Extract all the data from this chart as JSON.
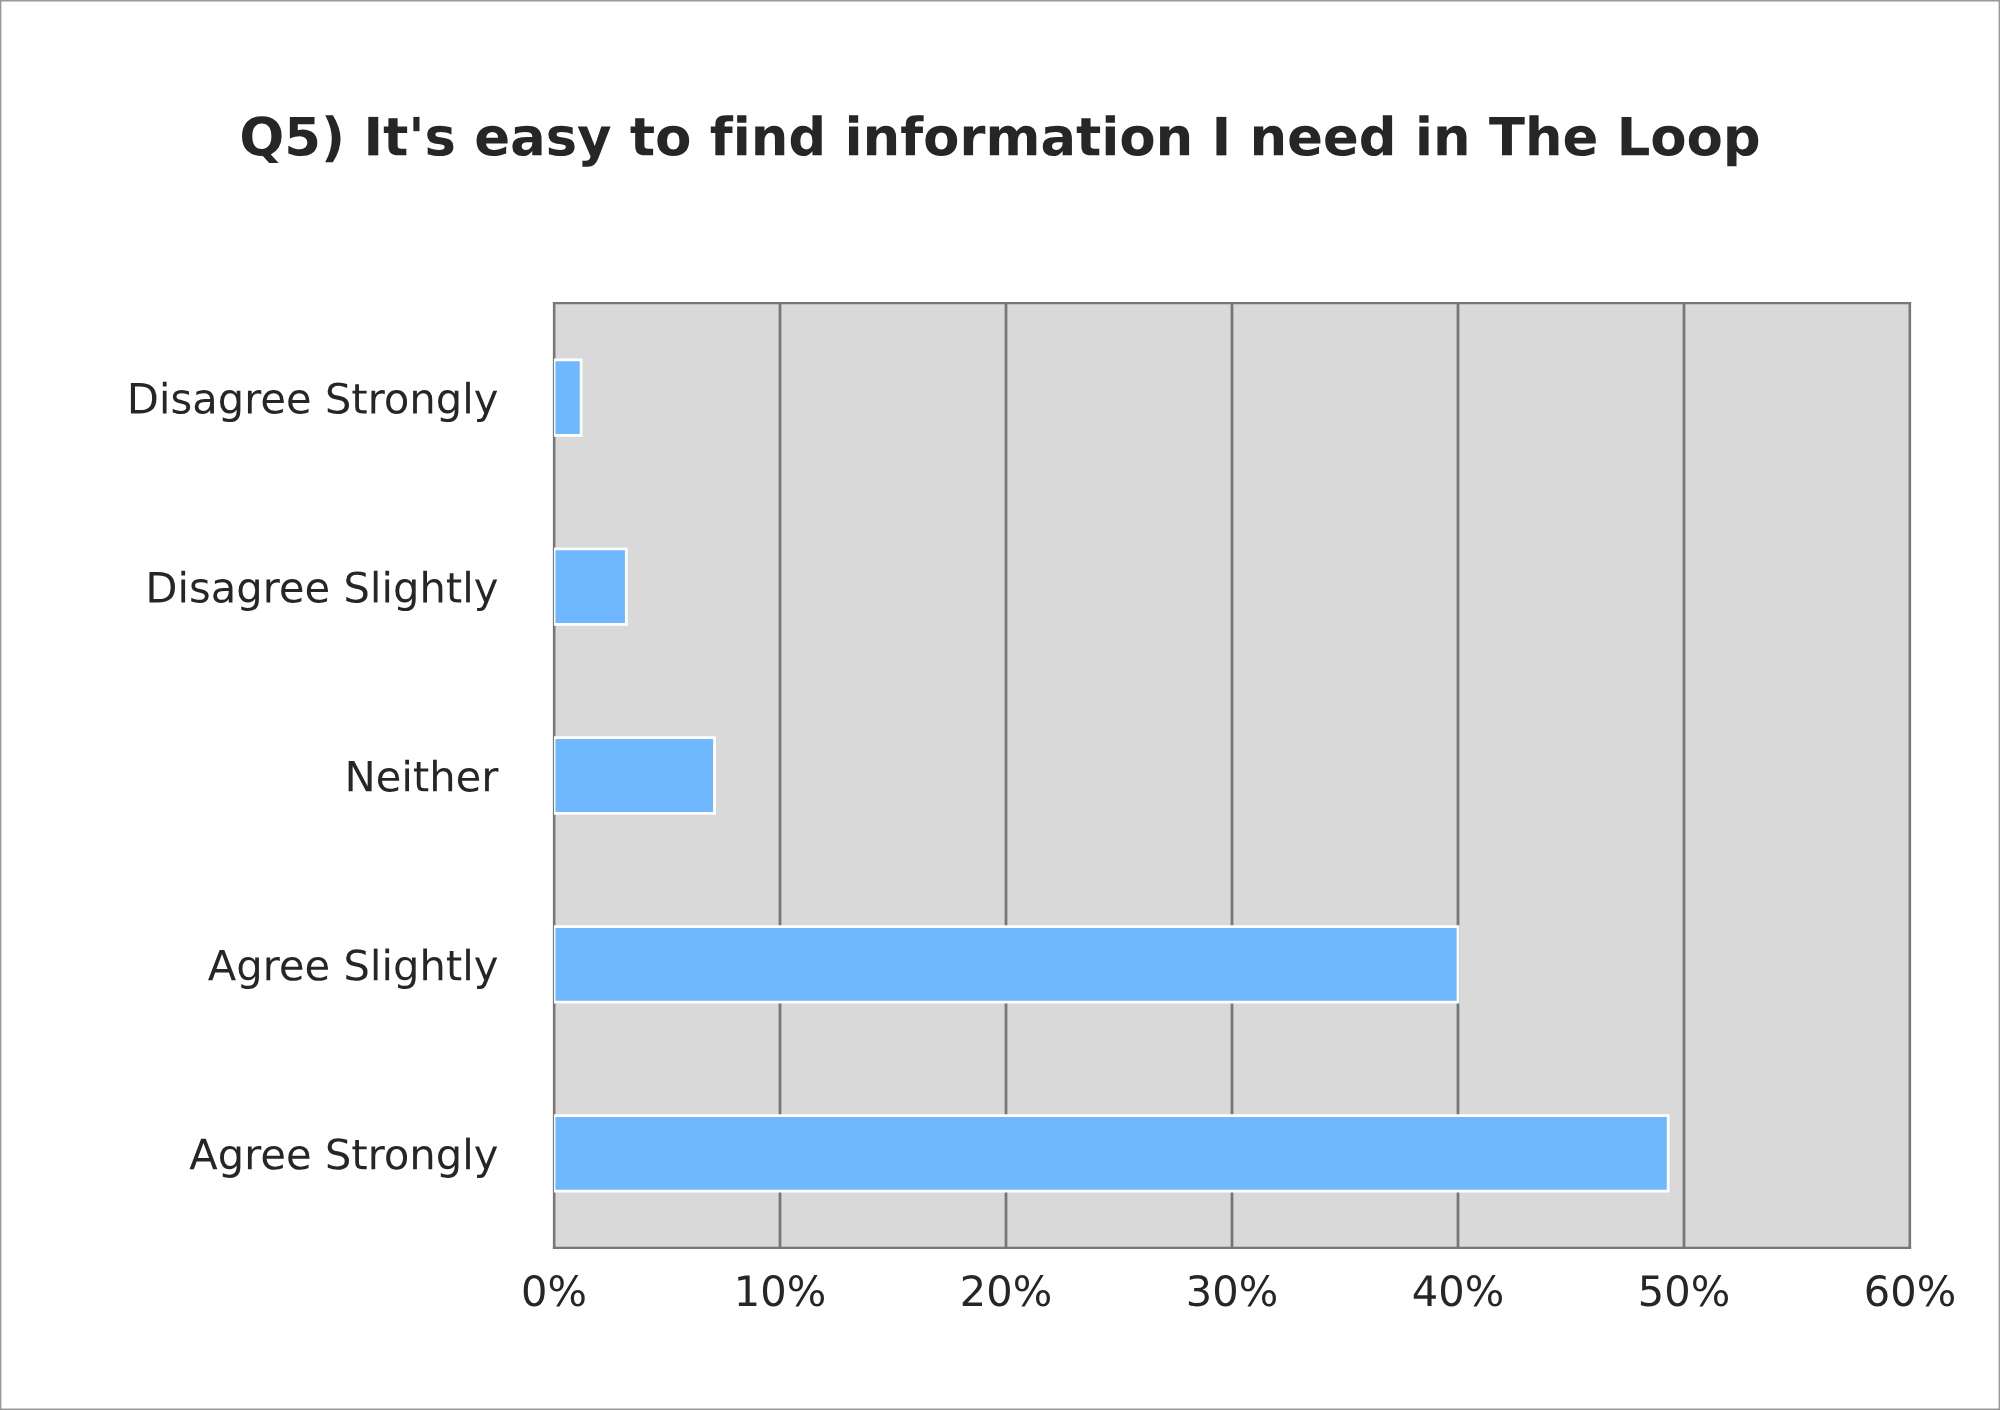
{
  "chart_data": {
    "type": "bar",
    "orientation": "horizontal",
    "title": "Q5) It's easy to find information I need in The Loop",
    "categories": [
      "Disagree Strongly",
      "Disagree Slightly",
      "Neither",
      "Agree Slightly",
      "Agree Strongly"
    ],
    "values": [
      1.2,
      3.2,
      7.1,
      40,
      49.3
    ],
    "color": "#6fb7ff",
    "xlim": [
      0,
      60
    ],
    "xticks": [
      {
        "value": 0,
        "label": "0%"
      },
      {
        "value": 10,
        "label": "10%"
      },
      {
        "value": 20,
        "label": "20%"
      },
      {
        "value": 30,
        "label": "30%"
      },
      {
        "value": 40,
        "label": "40%"
      },
      {
        "value": 50,
        "label": "50%"
      },
      {
        "value": 60,
        "label": "60%"
      }
    ],
    "grid": "x",
    "legend": false
  }
}
